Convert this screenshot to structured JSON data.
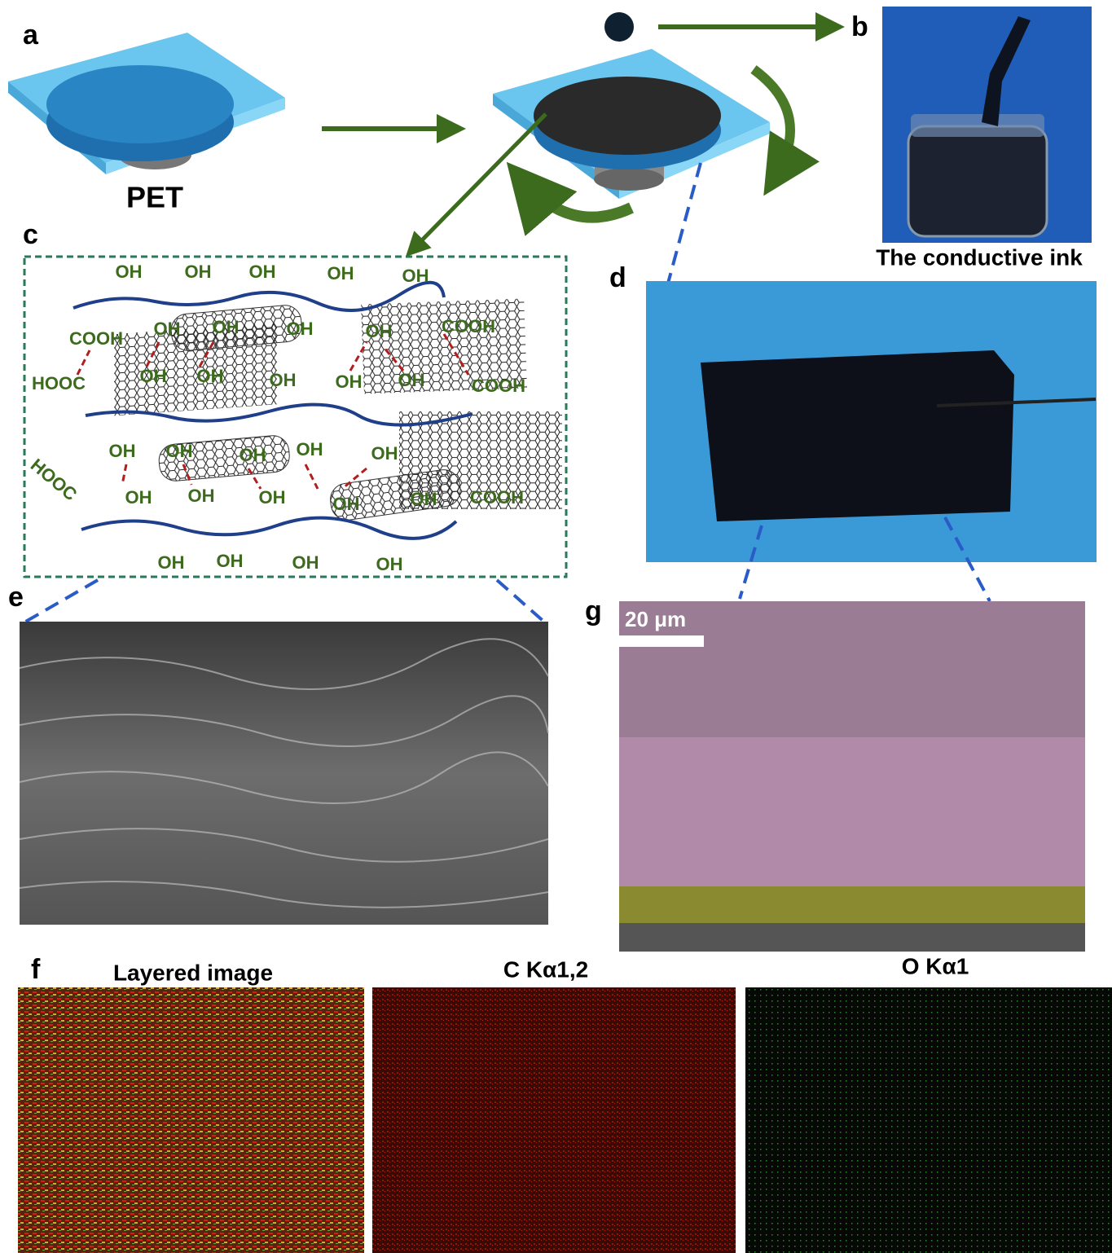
{
  "panels": {
    "a": {
      "label": "a",
      "caption": "PET"
    },
    "b": {
      "label": "b",
      "caption": "The conductive ink"
    },
    "c": {
      "label": "c",
      "groups": [
        "OH",
        "OH",
        "OH",
        "OH",
        "OH",
        "COOH",
        "OH",
        "OH",
        "OH",
        "OH",
        "COOH",
        "HOOC",
        "OH",
        "OH",
        "OH",
        "OH",
        "OH",
        "COOH",
        "OH",
        "OH",
        "OH",
        "OH",
        "OH",
        "HOOC",
        "OH",
        "OH",
        "OH",
        "OH",
        "OH",
        "COOH",
        "OH",
        "OH",
        "OH",
        "OH"
      ]
    },
    "d": {
      "label": "d"
    },
    "e": {
      "label": "e"
    },
    "f": {
      "label": "f",
      "maps": [
        "Layered image",
        "C Kα1,2",
        "O Kα1"
      ]
    },
    "g": {
      "label": "g",
      "scale_bar": "20 μm"
    }
  }
}
